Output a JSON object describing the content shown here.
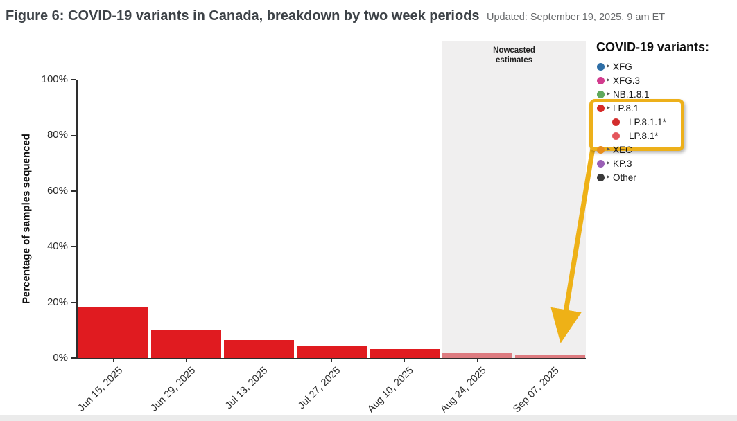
{
  "header": {
    "title": "Figure 6: COVID-19 variants in Canada, breakdown by two week periods",
    "updated": "Updated: September 19, 2025, 9 am ET"
  },
  "chart_data": {
    "type": "bar",
    "title": "COVID-19 variants in Canada, breakdown by two week periods",
    "xlabel": "",
    "ylabel": "Percentage of samples sequenced",
    "categories": [
      "Jun 15, 2025",
      "Jun 29, 2025",
      "Jul 13, 2025",
      "Jul 27, 2025",
      "Aug 10, 2025",
      "Aug 24, 2025",
      "Sep 07, 2025"
    ],
    "values": [
      18.5,
      10.3,
      6.4,
      4.4,
      3.3,
      1.8,
      0.9
    ],
    "series_name": "LP.8.1",
    "bar_colors": [
      "#e01b20",
      "#e01b20",
      "#e01b20",
      "#e01b20",
      "#e01b20",
      "#dd7b80",
      "#dd7b80"
    ],
    "ylim": [
      0,
      100
    ],
    "ytick_values": [
      0,
      20,
      40,
      60,
      80,
      100
    ],
    "ytick_labels": [
      "0%",
      "20%",
      "40%",
      "60%",
      "80%",
      "100%"
    ],
    "grid": false,
    "legend_position": "right",
    "nowcast": {
      "label": "Nowcasted estimates",
      "start_category_index": 5,
      "band_color": "#f0efef"
    }
  },
  "legend": {
    "heading": "COVID-19 variants:",
    "highlight_color": "#edb01a",
    "items": [
      {
        "label": "XFG",
        "color": "#2e6ea6",
        "expandable": true,
        "sub": false
      },
      {
        "label": "XFG.3",
        "color": "#d23b8e",
        "expandable": true,
        "sub": false
      },
      {
        "label": "NB.1.8.1",
        "color": "#5fa85c",
        "expandable": true,
        "sub": false
      },
      {
        "label": "LP.8.1",
        "color": "#d62a28",
        "expandable": true,
        "sub": false
      },
      {
        "label": "LP.8.1.1*",
        "color": "#d32d2d",
        "expandable": false,
        "sub": true
      },
      {
        "label": "LP.8.1*",
        "color": "#e4555b",
        "expandable": false,
        "sub": true
      },
      {
        "label": "XEC",
        "color": "#e88d1c",
        "expandable": true,
        "sub": false
      },
      {
        "label": "KP.3",
        "color": "#9a5fb5",
        "expandable": true,
        "sub": false
      },
      {
        "label": "Other",
        "color": "#3a3a3a",
        "expandable": true,
        "sub": false
      }
    ]
  },
  "annotation": {
    "arrow_color": "#eeb117"
  }
}
